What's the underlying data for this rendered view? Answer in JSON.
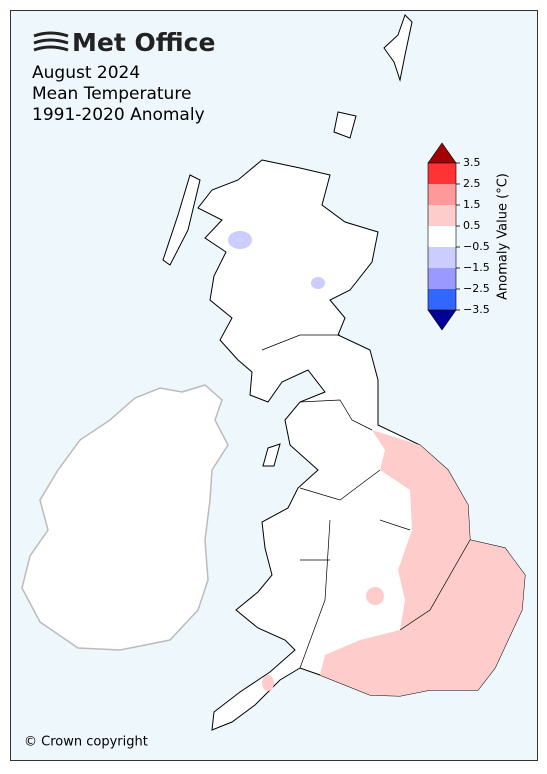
{
  "logo": "Met Office",
  "title_lines": [
    "August 2024",
    "Mean Temperature",
    "1991-2020 Anomaly"
  ],
  "colorbar": {
    "label": "Anomaly Value (°C)",
    "ticks": [
      3.5,
      2.5,
      1.5,
      0.5,
      {
        "value": -0.5,
        "label": "−0.5"
      },
      {
        "value": -1.5,
        "label": "−1.5"
      },
      {
        "value": -2.5,
        "label": "−2.5"
      },
      {
        "value": -3.5,
        "label": "−3.5"
      }
    ],
    "colors": [
      "#a50000",
      "#ff3333",
      "#ff9999",
      "#ffcccc",
      "#ffffff",
      "#ccccff",
      "#9999ff",
      "#3366ff",
      "#000099"
    ]
  },
  "copyright": "© Crown copyright"
}
